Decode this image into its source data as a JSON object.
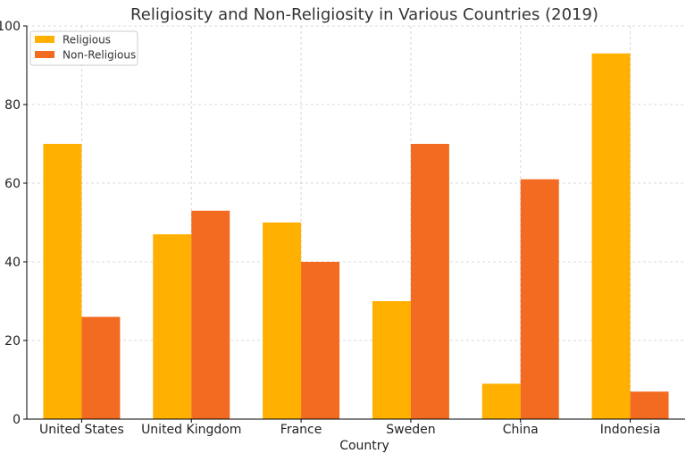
{
  "chart_data": {
    "type": "bar",
    "title": "Religiosity and Non-Religiosity in Various Countries (2019)",
    "xlabel": "Country",
    "ylabel": "",
    "categories": [
      "United States",
      "United Kingdom",
      "France",
      "Sweden",
      "China",
      "Indonesia"
    ],
    "series": [
      {
        "name": "Religious",
        "values": [
          70,
          47,
          50,
          30,
          9,
          93
        ],
        "color": "#FFB000"
      },
      {
        "name": "Non-Religious",
        "values": [
          26,
          53,
          40,
          70,
          61,
          7
        ],
        "color": "#F26B21"
      }
    ],
    "ylim": [
      0,
      100
    ],
    "yticks": [
      0,
      20,
      40,
      60,
      80,
      100
    ],
    "grid": true,
    "legend_position": "top-left"
  }
}
